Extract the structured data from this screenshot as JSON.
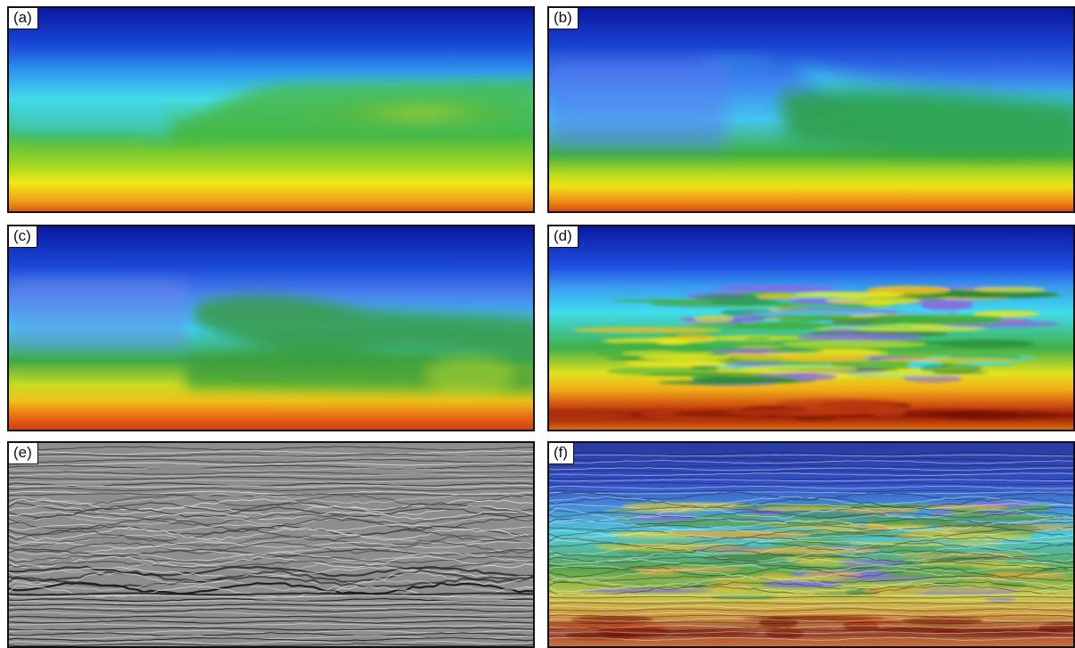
{
  "panels": {
    "a": {
      "label": "(a)"
    },
    "b": {
      "label": "(b)"
    },
    "c": {
      "label": "(c)"
    },
    "d": {
      "label": "(d)"
    },
    "e": {
      "label": "(e)"
    },
    "f": {
      "label": "(f)"
    }
  },
  "colors": {
    "deep_blue": "#0a1aa8",
    "blue": "#3a6cf0",
    "cyan": "#3ee6f2",
    "green": "#3fb63f",
    "yellow": "#e6e61e",
    "orange": "#f0a018",
    "red_orange": "#d8480a",
    "seismic_gray": "#8f8f8f"
  }
}
